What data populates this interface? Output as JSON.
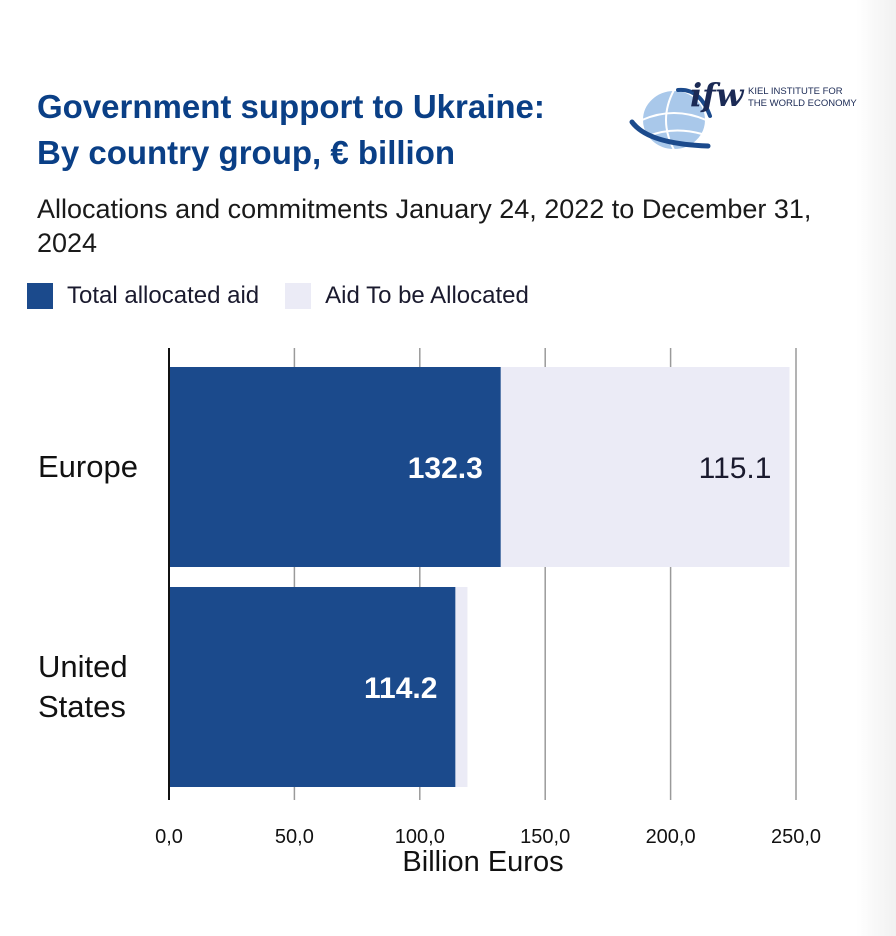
{
  "header": {
    "title_line1": "Government support to Ukraine:",
    "title_line2": "By country group, € billion",
    "subtitle": "Allocations and commitments January 24, 2022 to December 31, 2024"
  },
  "logo": {
    "mark": "ifw",
    "line1": "KIEL INSTITUTE FOR",
    "line2": "THE WORLD ECONOMY"
  },
  "colors": {
    "allocated": "#1b4a8c",
    "to_be_allocated": "#ebebf6",
    "title": "#0a3f86",
    "label_on_dark": "#ffffff",
    "label_on_light": "#1a1a2e"
  },
  "chart_data": {
    "type": "bar",
    "orientation": "horizontal",
    "stacked": true,
    "categories": [
      "Europe",
      "United States"
    ],
    "category_labels": [
      [
        "Europe"
      ],
      [
        "United",
        "States"
      ]
    ],
    "series": [
      {
        "name": "Total allocated aid",
        "values": [
          132.3,
          114.2
        ],
        "labels": [
          "132.3",
          "114.2"
        ]
      },
      {
        "name": "Aid To be Allocated",
        "values": [
          115.1,
          4.8
        ],
        "labels": [
          "115.1",
          ""
        ]
      }
    ],
    "xlabel": "Billion Euros",
    "xlim": [
      0,
      250
    ],
    "xticks": [
      0,
      50,
      100,
      150,
      200,
      250
    ],
    "xtick_labels": [
      "0,0",
      "50,0",
      "100,0",
      "150,0",
      "200,0",
      "250,0"
    ],
    "grid": true,
    "legend_position": "top-left"
  }
}
